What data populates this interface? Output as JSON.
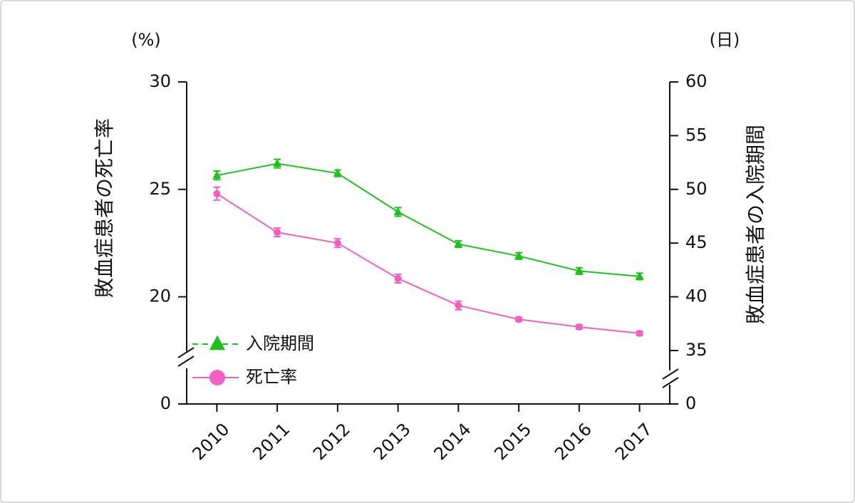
{
  "chart_data": {
    "type": "line",
    "categories": [
      "2010",
      "2011",
      "2012",
      "2013",
      "2014",
      "2015",
      "2016",
      "2017"
    ],
    "y_label": "敗血症患者の死亡率",
    "y2_label": "敗血症患者の入院期間",
    "y_unit": "(%)",
    "y2_unit": "(日)",
    "ylim": [
      0,
      30
    ],
    "yticks": [
      0,
      20,
      25,
      30
    ],
    "ybreak": 17.5,
    "y2lim": [
      0,
      60
    ],
    "y2ticks": [
      0,
      35,
      40,
      45,
      50,
      55,
      60
    ],
    "y2break": 35,
    "legend": "lower left",
    "series": [
      {
        "name": "入院期間",
        "color": "#1fbf1f",
        "marker": "triangle",
        "axis": "y2",
        "values": [
          51.3,
          52.4,
          51.5,
          47.9,
          44.9,
          43.8,
          42.4,
          41.9
        ],
        "errors": [
          0.4,
          0.4,
          0.3,
          0.4,
          0.3,
          0.3,
          0.3,
          0.3
        ]
      },
      {
        "name": "死亡率",
        "color": "#f060c0",
        "marker": "circle",
        "axis": "y",
        "values": [
          24.8,
          23.0,
          22.5,
          20.85,
          19.6,
          18.95,
          18.6,
          18.3
        ],
        "errors": [
          0.3,
          0.2,
          0.2,
          0.2,
          0.2,
          0.1,
          0.1,
          0.1
        ]
      }
    ]
  }
}
